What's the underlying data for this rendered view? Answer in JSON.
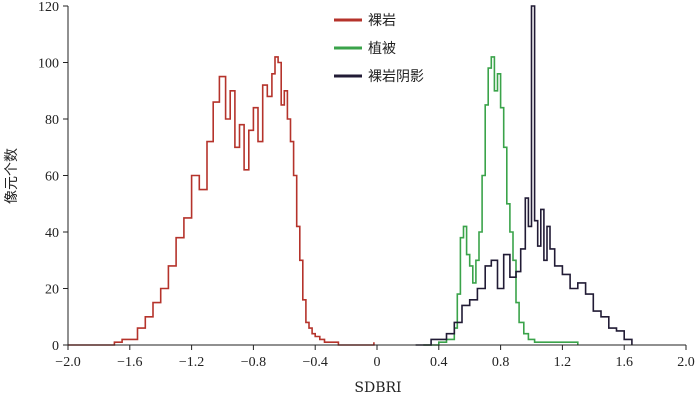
{
  "chart_data": {
    "type": "line",
    "title": "",
    "xlabel": "SDBRI",
    "ylabel": "像元个数",
    "xlim": [
      -2.0,
      2.0
    ],
    "ylim": [
      0,
      120
    ],
    "x_ticks": [
      -2.0,
      -1.6,
      -1.2,
      -0.8,
      -0.4,
      0,
      0.4,
      0.8,
      1.2,
      1.6,
      2.0
    ],
    "x_tick_labels": [
      "−2.0",
      "−1.6",
      "−1.2",
      "−0.8",
      "−0.4",
      "0",
      "0.4",
      "0.8",
      "1.2",
      "1.6",
      "2.0"
    ],
    "y_ticks": [
      0,
      20,
      40,
      60,
      80,
      100,
      120
    ],
    "y_tick_labels": [
      "0",
      "20",
      "40",
      "60",
      "80",
      "100",
      "120"
    ],
    "grid": false,
    "legend_position": "top-center",
    "series": [
      {
        "name": "裸岩",
        "color": "#b5332b",
        "x": [
          -2.0,
          -1.9,
          -1.8,
          -1.7,
          -1.65,
          -1.6,
          -1.55,
          -1.5,
          -1.45,
          -1.4,
          -1.35,
          -1.3,
          -1.25,
          -1.2,
          -1.15,
          -1.1,
          -1.06,
          -1.02,
          -0.98,
          -0.95,
          -0.92,
          -0.89,
          -0.86,
          -0.83,
          -0.8,
          -0.77,
          -0.74,
          -0.71,
          -0.68,
          -0.66,
          -0.64,
          -0.62,
          -0.6,
          -0.58,
          -0.56,
          -0.54,
          -0.52,
          -0.5,
          -0.48,
          -0.46,
          -0.44,
          -0.42,
          -0.4,
          -0.37,
          -0.34,
          -0.3,
          -0.25,
          -0.2,
          -0.1,
          -0.02
        ],
        "values": [
          0,
          0,
          0,
          1,
          2,
          2,
          6,
          10,
          15,
          20,
          28,
          38,
          45,
          60,
          55,
          72,
          86,
          95,
          80,
          90,
          70,
          78,
          62,
          76,
          84,
          72,
          92,
          88,
          96,
          102,
          100,
          85,
          90,
          80,
          72,
          60,
          42,
          30,
          16,
          8,
          6,
          4,
          3,
          2,
          1,
          1,
          0,
          0,
          0,
          1
        ]
      },
      {
        "name": "植被",
        "color": "#3aa34a",
        "x": [
          0.3,
          0.4,
          0.45,
          0.5,
          0.52,
          0.54,
          0.56,
          0.58,
          0.6,
          0.62,
          0.64,
          0.66,
          0.68,
          0.7,
          0.72,
          0.74,
          0.76,
          0.78,
          0.8,
          0.82,
          0.84,
          0.86,
          0.88,
          0.9,
          0.92,
          0.95,
          0.98,
          1.02,
          1.1,
          1.2,
          1.3
        ],
        "values": [
          0,
          1,
          2,
          6,
          18,
          38,
          42,
          32,
          28,
          22,
          30,
          40,
          60,
          85,
          98,
          102,
          90,
          96,
          84,
          70,
          50,
          40,
          30,
          15,
          8,
          4,
          2,
          1,
          1,
          1,
          0
        ]
      },
      {
        "name": "裸岩阴影",
        "color": "#211b35",
        "x": [
          0.25,
          0.35,
          0.45,
          0.5,
          0.55,
          0.6,
          0.65,
          0.7,
          0.74,
          0.78,
          0.82,
          0.86,
          0.9,
          0.93,
          0.96,
          0.98,
          1.0,
          1.02,
          1.04,
          1.06,
          1.08,
          1.1,
          1.12,
          1.15,
          1.2,
          1.25,
          1.3,
          1.35,
          1.4,
          1.45,
          1.5,
          1.55,
          1.6,
          1.65
        ],
        "values": [
          0,
          2,
          4,
          8,
          14,
          16,
          20,
          28,
          30,
          20,
          32,
          24,
          26,
          34,
          52,
          42,
          120,
          44,
          35,
          48,
          30,
          42,
          34,
          28,
          25,
          20,
          22,
          18,
          12,
          10,
          6,
          5,
          2,
          0
        ]
      }
    ]
  }
}
